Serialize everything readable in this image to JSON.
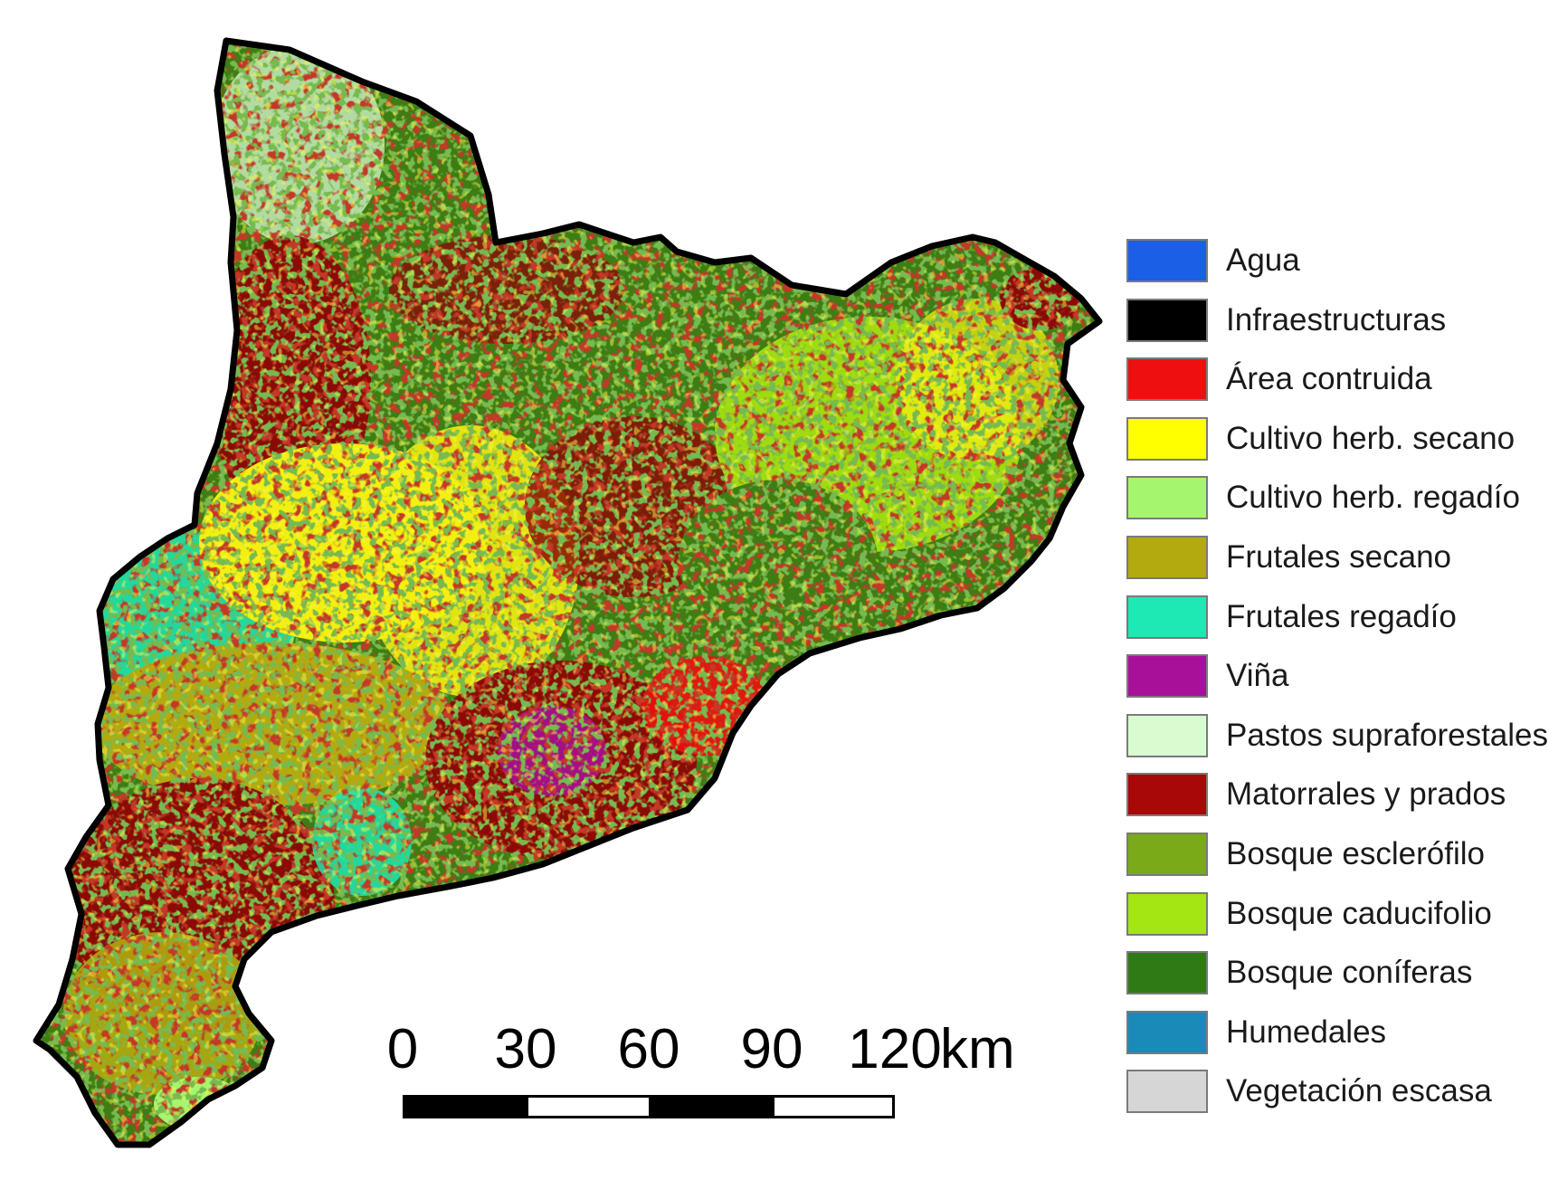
{
  "map": {
    "region_colors": {
      "mix_a": "#8b0a06",
      "mix_b": "#3d7d14",
      "mix_c": "#f3ef10",
      "mix_d": "#9edb10"
    }
  },
  "legend": {
    "items": [
      {
        "label": "Agua",
        "color": "#1a5fe6"
      },
      {
        "label": "Infraestructuras",
        "color": "#000000"
      },
      {
        "label": "Área contruida",
        "color": "#ee1010"
      },
      {
        "label": "Cultivo herb. secano",
        "color": "#ffff00"
      },
      {
        "label": "Cultivo herb. regadío",
        "color": "#a6f56e"
      },
      {
        "label": "Frutales secano",
        "color": "#b3aa10"
      },
      {
        "label": "Frutales regadío",
        "color": "#1ee8b4"
      },
      {
        "label": "Viña",
        "color": "#a8109a"
      },
      {
        "label": "Pastos supraforestales",
        "color": "#d8fbd0"
      },
      {
        "label": "Matorrales y prados",
        "color": "#a80808"
      },
      {
        "label": "Bosque esclerófilo",
        "color": "#7aaa18"
      },
      {
        "label": "Bosque caducifolio",
        "color": "#a4e614"
      },
      {
        "label": "Bosque coníferas",
        "color": "#2f7a14"
      },
      {
        "label": "Humedales",
        "color": "#1a8ab8"
      },
      {
        "label": "Vegetación escasa",
        "color": "#d6d6d6"
      }
    ]
  },
  "scale": {
    "ticks": [
      "0",
      "30",
      "60",
      "90",
      "120"
    ],
    "unit": "km"
  }
}
